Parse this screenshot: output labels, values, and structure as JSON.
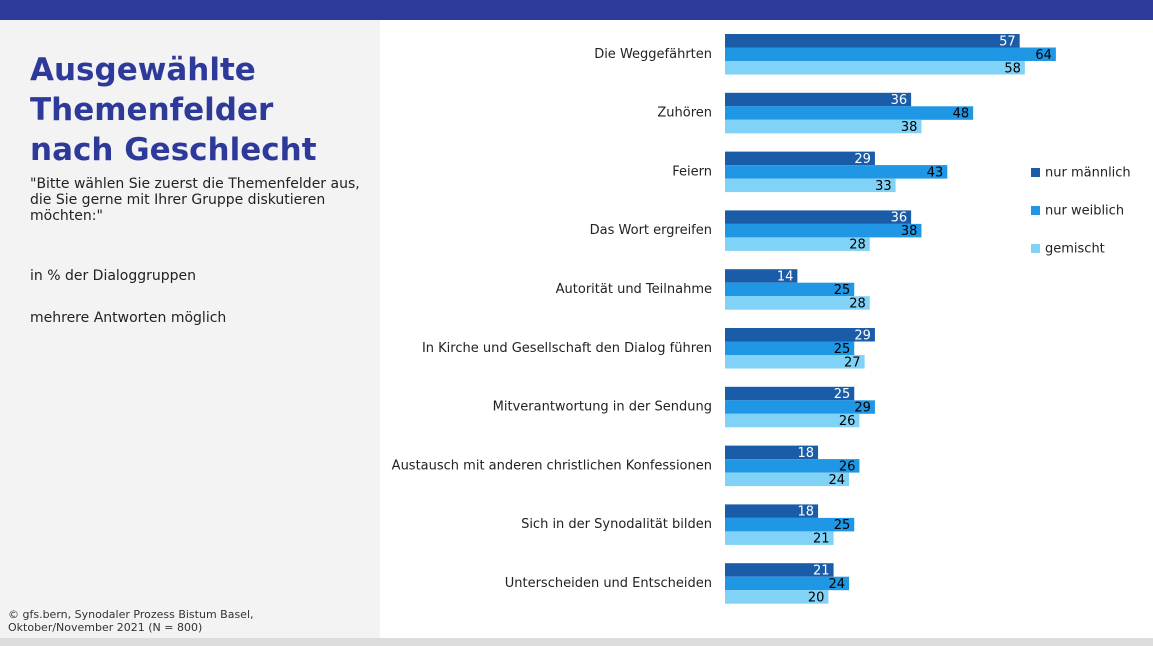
{
  "chart_data": {
    "type": "bar",
    "orientation": "horizontal",
    "title": [
      "Ausgewählte",
      "Themenfelder",
      "nach Geschlecht"
    ],
    "subtitle": "\"Bitte wählen Sie zuerst die Themenfelder aus, die Sie gerne mit Ihrer Gruppe diskutieren möchten:\"",
    "notes": [
      "in % der Dialoggruppen",
      "mehrere Antworten möglich"
    ],
    "source": [
      "©  gfs.bern, Synodaler Prozess Bistum Basel,",
      "Oktober/November 2021 (N = 800)"
    ],
    "categories": [
      "Die Weggefährten",
      "Zuhören",
      "Feiern",
      "Das Wort ergreifen",
      "Autorität und Teilnahme",
      "In Kirche und Gesellschaft den Dialog führen",
      "Mitverantwortung in der Sendung",
      "Austausch mit anderen christlichen Konfessionen",
      "Sich in der Synodalität bilden",
      "Unterscheiden und Entscheiden"
    ],
    "series": [
      {
        "name": "nur männlich",
        "color": "#1b5ca9",
        "values": [
          57,
          36,
          29,
          36,
          14,
          29,
          25,
          18,
          18,
          21
        ]
      },
      {
        "name": "nur weiblich",
        "color": "#1f97e4",
        "values": [
          64,
          48,
          43,
          38,
          25,
          25,
          29,
          26,
          25,
          24
        ]
      },
      {
        "name": "gemischt",
        "color": "#80d2f6",
        "values": [
          58,
          38,
          33,
          28,
          28,
          27,
          26,
          24,
          21,
          20
        ]
      }
    ]
  }
}
